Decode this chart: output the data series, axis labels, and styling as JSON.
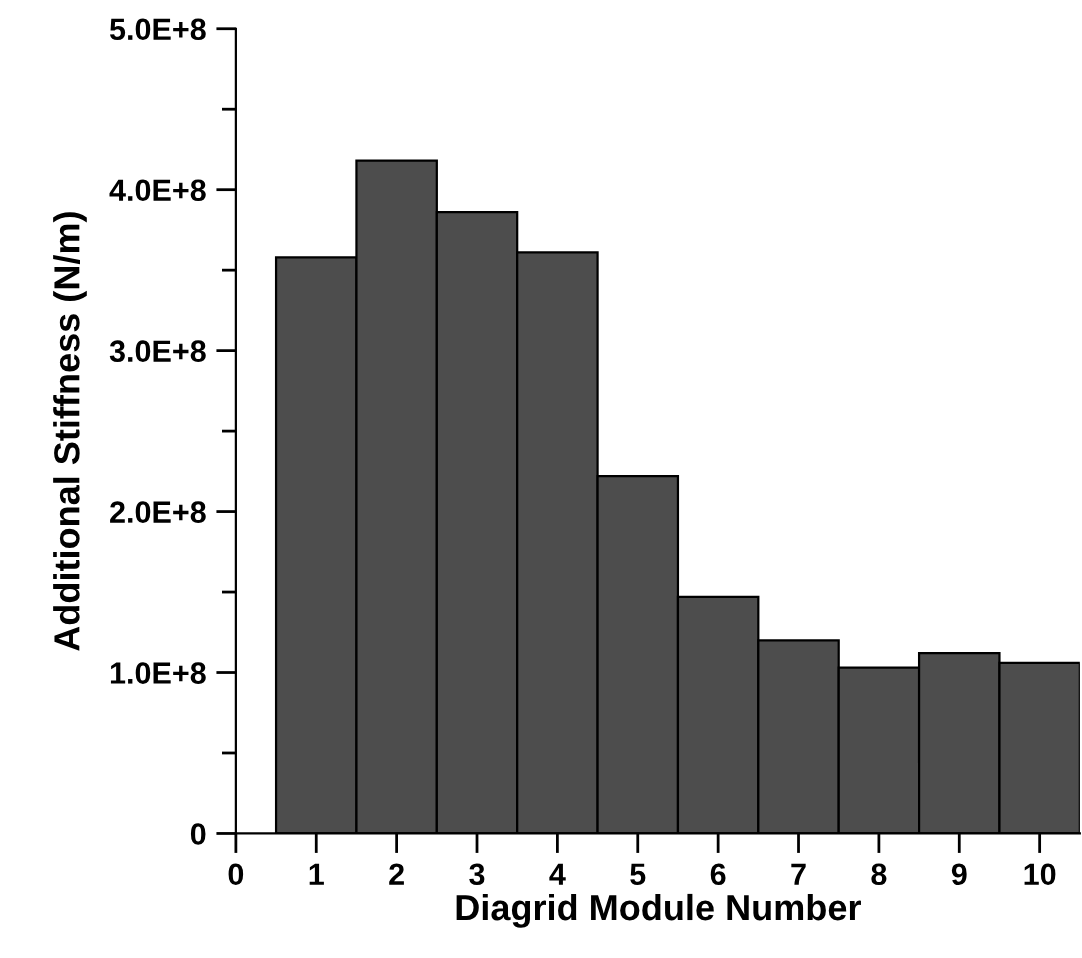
{
  "chart_data": {
    "type": "bar",
    "xlabel": "Diagrid Module Number",
    "ylabel": "Additional Stiffness (N/m)",
    "x": [
      1,
      2,
      3,
      4,
      5,
      6,
      7,
      8,
      9,
      10
    ],
    "values": [
      358000000,
      418000000,
      386000000,
      361000000,
      222000000,
      147000000,
      120000000,
      103000000,
      112000000,
      106000000
    ],
    "color": "#4d4d4d",
    "xlim": [
      0,
      10.5
    ],
    "xticks": [
      0,
      1,
      2,
      3,
      4,
      5,
      6,
      7,
      8,
      9,
      10
    ],
    "ylim": [
      0,
      500000000
    ],
    "yticks": [
      0,
      {
        "value": 100000000,
        "label": "1.0E+8"
      },
      {
        "value": 200000000,
        "label": "2.0E+8"
      },
      {
        "value": 300000000,
        "label": "3.0E+8"
      },
      {
        "value": 400000000,
        "label": "4.0E+8"
      },
      {
        "value": 500000000,
        "label": "5.0E+8"
      }
    ],
    "grid": false,
    "legend": false
  }
}
